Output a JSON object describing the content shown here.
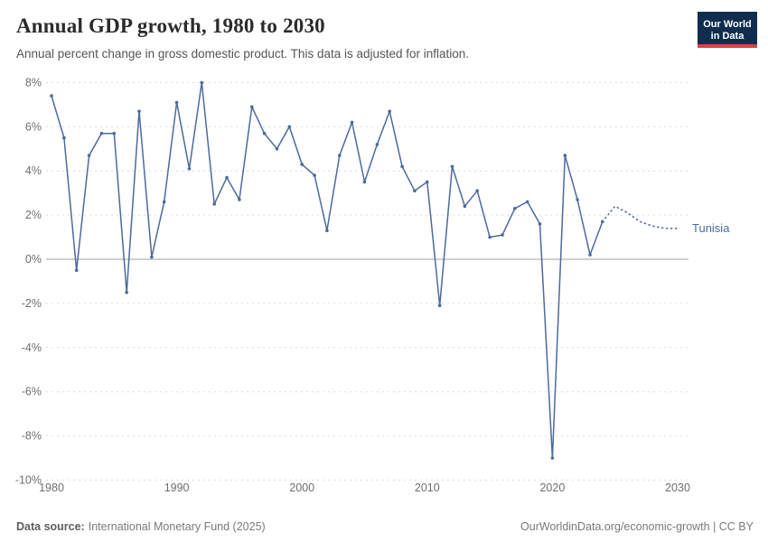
{
  "header": {
    "title": "Annual GDP growth, 1980 to 2030",
    "subtitle": "Annual percent change in gross domestic product. This data is adjusted for inflation."
  },
  "logo": {
    "line1": "Our World",
    "line2": "in Data"
  },
  "colors": {
    "line": "#4c6a9c",
    "grid": "#dcdcdc",
    "zero_line": "#a3a3a3",
    "logo_bg": "#102d50",
    "logo_red": "#d84343"
  },
  "chart_data": {
    "type": "line",
    "title": "Annual GDP growth, 1980 to 2030",
    "xlabel": "",
    "ylabel": "",
    "ylim": [
      -10,
      8
    ],
    "xlim": [
      1980,
      2030
    ],
    "grid": true,
    "legend_position": "right-end-label",
    "yticks": [
      {
        "v": 8,
        "label": "8%"
      },
      {
        "v": 6,
        "label": "6%"
      },
      {
        "v": 4,
        "label": "4%"
      },
      {
        "v": 2,
        "label": "2%"
      },
      {
        "v": 0,
        "label": "0%"
      },
      {
        "v": -2,
        "label": "-2%"
      },
      {
        "v": -4,
        "label": "-4%"
      },
      {
        "v": -6,
        "label": "-6%"
      },
      {
        "v": -8,
        "label": "-8%"
      },
      {
        "v": -10,
        "label": "-10%"
      }
    ],
    "xticks": [
      {
        "v": 1980,
        "label": "1980"
      },
      {
        "v": 1990,
        "label": "1990"
      },
      {
        "v": 2000,
        "label": "2000"
      },
      {
        "v": 2010,
        "label": "2010"
      },
      {
        "v": 2020,
        "label": "2020"
      },
      {
        "v": 2030,
        "label": "2030"
      }
    ],
    "x": [
      1980,
      1981,
      1982,
      1983,
      1984,
      1985,
      1986,
      1987,
      1988,
      1989,
      1990,
      1991,
      1992,
      1993,
      1994,
      1995,
      1996,
      1997,
      1998,
      1999,
      2000,
      2001,
      2002,
      2003,
      2004,
      2005,
      2006,
      2007,
      2008,
      2009,
      2010,
      2011,
      2012,
      2013,
      2014,
      2015,
      2016,
      2017,
      2018,
      2019,
      2020,
      2021,
      2022,
      2023,
      2024,
      2025,
      2026,
      2027,
      2028,
      2029,
      2030
    ],
    "series": [
      {
        "name": "Tunisia",
        "color": "#4c6a9c",
        "projection_from": 2024,
        "values": [
          7.4,
          5.5,
          -0.5,
          4.7,
          5.7,
          5.7,
          -1.5,
          6.7,
          0.1,
          2.6,
          7.1,
          4.1,
          8.0,
          2.5,
          3.7,
          2.7,
          6.9,
          5.7,
          5.0,
          6.0,
          4.3,
          3.8,
          1.3,
          4.7,
          6.2,
          3.5,
          5.2,
          6.7,
          4.2,
          3.1,
          3.5,
          -2.1,
          4.2,
          2.4,
          3.1,
          1.0,
          1.1,
          2.3,
          2.6,
          1.6,
          -9.0,
          4.7,
          2.7,
          0.2,
          1.7,
          2.4,
          2.1,
          1.7,
          1.5,
          1.4,
          1.4
        ]
      }
    ]
  },
  "footer": {
    "source_label": "Data source:",
    "source_value": "International Monetary Fund (2025)",
    "attribution": "OurWorldinData.org/economic-growth | CC BY"
  }
}
